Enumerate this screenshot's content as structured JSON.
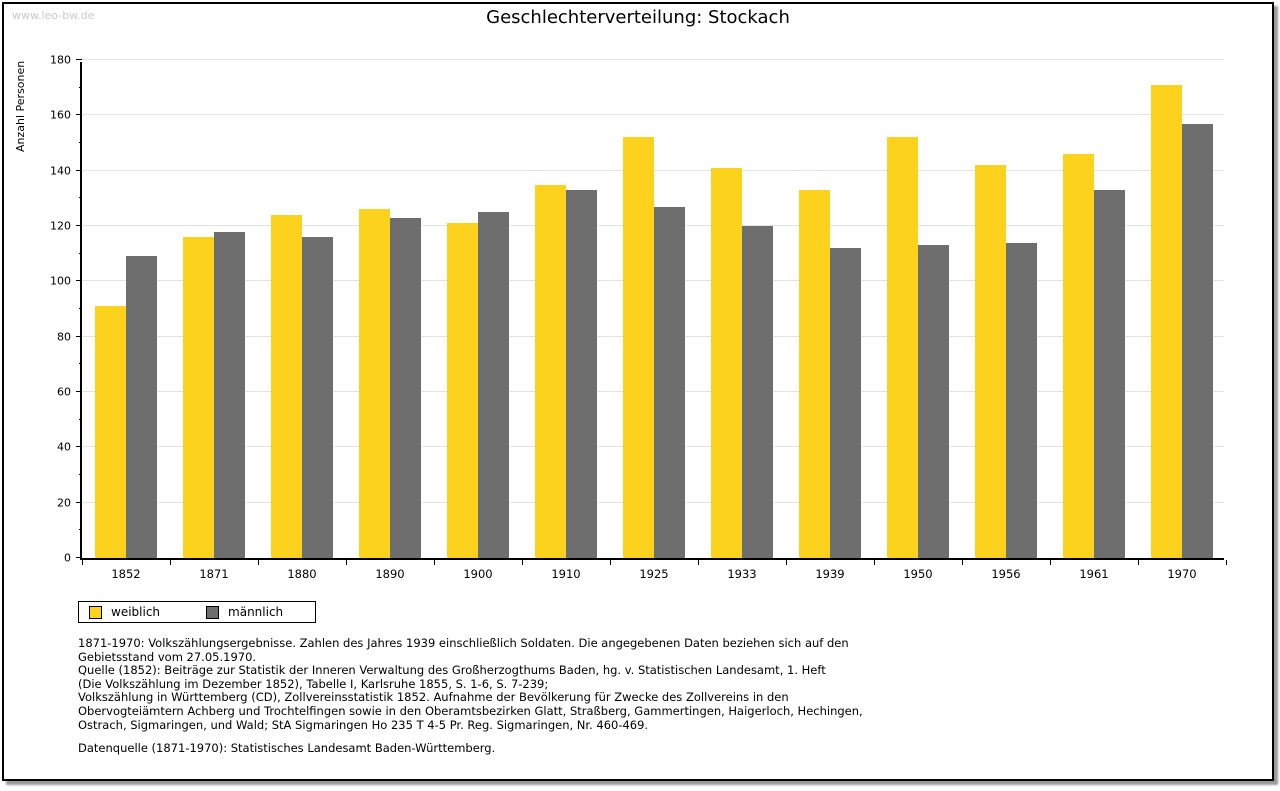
{
  "watermark": "www.leo-bw.de",
  "title": "Geschlechterverteilung: Stockach",
  "chart_data": {
    "type": "bar",
    "title": "Geschlechterverteilung: Stockach",
    "xlabel": "",
    "ylabel": "Anzahl Personen",
    "ylim": [
      0,
      180
    ],
    "ytick_step": 20,
    "yminor_step": 10,
    "grid": "horizontal",
    "legend_position": "bottom-left",
    "categories": [
      "1852",
      "1871",
      "1880",
      "1890",
      "1900",
      "1910",
      "1925",
      "1933",
      "1939",
      "1950",
      "1956",
      "1961",
      "1970"
    ],
    "series": [
      {
        "name": "weiblich",
        "color": "#FCD21D",
        "values": [
          91,
          116,
          124,
          126,
          121,
          135,
          152,
          141,
          133,
          152,
          142,
          146,
          171
        ]
      },
      {
        "name": "männlich",
        "color": "#6E6E6E",
        "values": [
          109,
          118,
          116,
          123,
          125,
          133,
          127,
          120,
          112,
          113,
          114,
          133,
          157
        ]
      }
    ]
  },
  "legend": [
    {
      "label": "weiblich",
      "color": "#FCD21D"
    },
    {
      "label": "männlich",
      "color": "#6E6E6E"
    }
  ],
  "footnotes": [
    "1871-1970: Volkszählungsergebnisse. Zahlen des Jahres 1939 einschließlich Soldaten. Die angegebenen Daten beziehen sich auf den",
    "Gebietsstand vom 27.05.1970.",
    "Quelle (1852): Beiträge zur Statistik der Inneren Verwaltung des Großherzogthums Baden, hg. v. Statistischen Landesamt, 1. Heft",
    "(Die Volkszählung im Dezember 1852), Tabelle I, Karlsruhe 1855, S. 1-6, S. 7-239;",
    "Volkszählung in Württemberg (CD), Zollvereinsstatistik 1852. Aufnahme der Bevölkerung für Zwecke des Zollvereins in den",
    "Obervogteiämtern Achberg und Trochtelfingen sowie in den Oberamtsbezirken Glatt, Straßberg, Gammertingen, Haigerloch, Hechingen,",
    "Ostrach, Sigmaringen, und Wald; StA Sigmaringen Ho 235 T 4-5 Pr. Reg. Sigmaringen, Nr. 460-469."
  ],
  "datasource": "Datenquelle (1871-1970): Statistisches Landesamt Baden-Württemberg."
}
